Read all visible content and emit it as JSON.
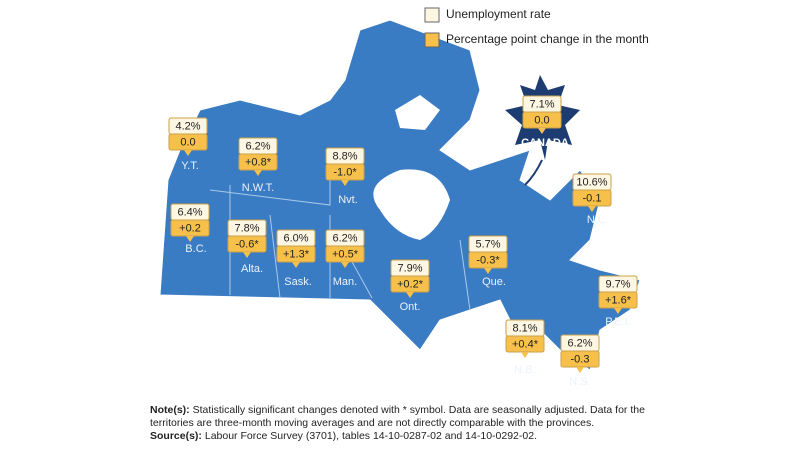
{
  "legend": {
    "items": [
      "Unemployment rate",
      "Percentage point change in the month"
    ]
  },
  "canada": {
    "label": "CANADA",
    "rate": "7.1%",
    "change": "0.0"
  },
  "regions": [
    {
      "name": "Y.T.",
      "rate": "4.2%",
      "change": "0.0"
    },
    {
      "name": "N.W.T.",
      "rate": "6.2%",
      "change": "+0.8*"
    },
    {
      "name": "Nvt.",
      "rate": "8.8%",
      "change": "-1.0*"
    },
    {
      "name": "B.C.",
      "rate": "6.4%",
      "change": "+0.2"
    },
    {
      "name": "Alta.",
      "rate": "7.8%",
      "change": "-0.6*"
    },
    {
      "name": "Sask.",
      "rate": "6.0%",
      "change": "+1.3*"
    },
    {
      "name": "Man.",
      "rate": "6.2%",
      "change": "+0.5*"
    },
    {
      "name": "Ont.",
      "rate": "7.9%",
      "change": "+0.2*"
    },
    {
      "name": "Que.",
      "rate": "5.7%",
      "change": "-0.3*"
    },
    {
      "name": "N.L.",
      "rate": "10.6%",
      "change": "-0.1"
    },
    {
      "name": "P.E.I.",
      "rate": "9.7%",
      "change": "+1.6*"
    },
    {
      "name": "N.B.",
      "rate": "8.1%",
      "change": "+0.4*"
    },
    {
      "name": "N.S.",
      "rate": "6.2%",
      "change": "-0.3"
    }
  ],
  "notes": {
    "note_label": "Note(s):",
    "note_text": "Statistically significant changes denoted with * symbol. Data are seasonally adjusted. Data for the territories are three-month moving averages and are not directly comparable with the provinces.",
    "source_label": "Source(s):",
    "source_text": "Labour Force Survey (3701), tables 14-10-0287-02 and 14-10-0292-02."
  }
}
